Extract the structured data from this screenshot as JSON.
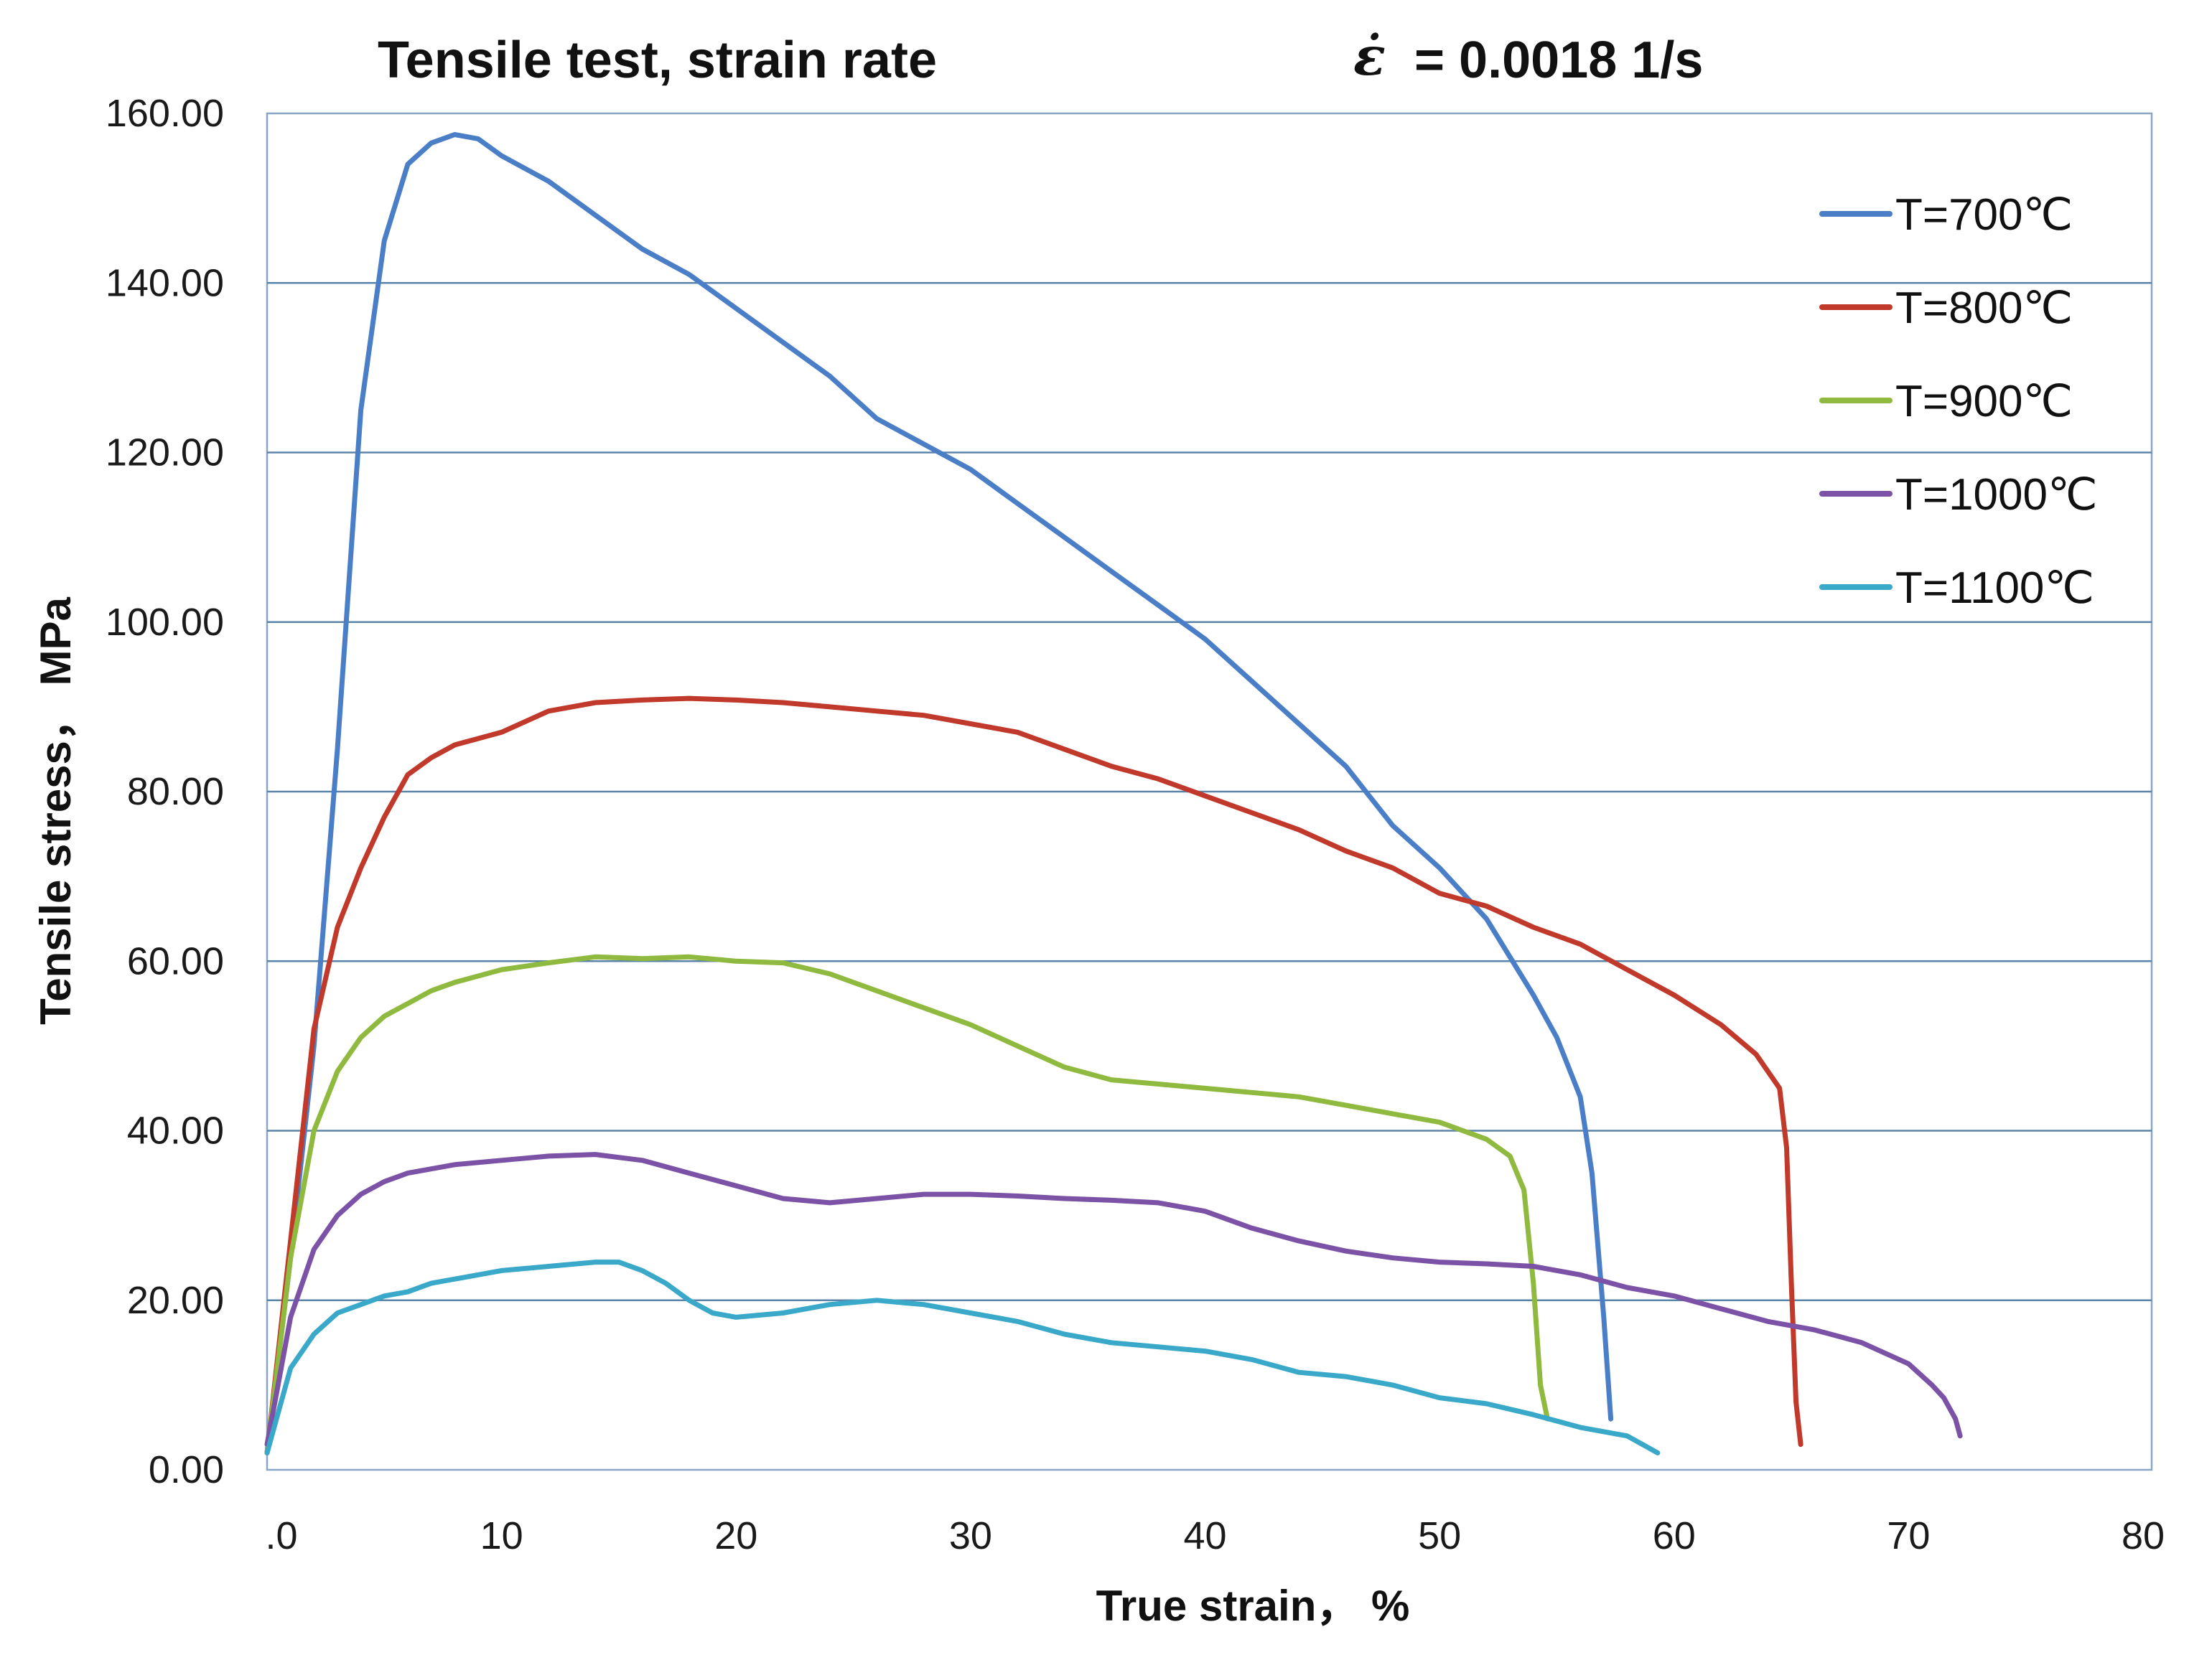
{
  "chart_data": {
    "type": "line",
    "title": "Tensile test, strain rate",
    "title_symbol": "ε̇",
    "title_value": "= 0.0018 1/s",
    "xlabel": "True strain，  %",
    "ylabel": "Tensile stress， MPa",
    "xlim": [
      0,
      80
    ],
    "ylim": [
      0,
      160
    ],
    "x_ticks": [
      0,
      10,
      20,
      30,
      40,
      50,
      60,
      70,
      80
    ],
    "x_tick_labels": [
      ".0",
      "10",
      "20",
      "30",
      "40",
      "50",
      "60",
      "70",
      "80"
    ],
    "y_ticks": [
      0,
      20,
      40,
      60,
      80,
      100,
      120,
      140,
      160
    ],
    "y_tick_labels": [
      "0.00",
      "20.00",
      "40.00",
      "60.00",
      "80.00",
      "100.00",
      "120.00",
      "140.00",
      "160.00"
    ],
    "grid": "horizontal",
    "legend_position": "top-right",
    "series": [
      {
        "name": "T=700℃",
        "color": "#4a7ec6",
        "x": [
          0,
          1,
          2,
          3,
          4,
          5,
          6,
          7,
          8,
          9,
          10,
          12,
          14,
          16,
          18,
          20,
          22,
          24,
          26,
          28,
          30,
          32,
          34,
          36,
          38,
          40,
          42,
          44,
          46,
          48,
          50,
          52,
          54,
          55,
          56,
          56.5,
          57,
          57.3
        ],
        "y": [
          2,
          25,
          50,
          85,
          125,
          145,
          154,
          156.5,
          157.5,
          157,
          155,
          152,
          148,
          144,
          141,
          137,
          133,
          129,
          124,
          121,
          118,
          114,
          110,
          106,
          102,
          98,
          93,
          88,
          83,
          76,
          71,
          65,
          56,
          51,
          44,
          35,
          18,
          6
        ]
      },
      {
        "name": "T=800℃",
        "color": "#c0392b",
        "x": [
          0,
          1,
          2,
          3,
          4,
          5,
          6,
          7,
          8,
          10,
          12,
          14,
          16,
          18,
          20,
          22,
          24,
          26,
          28,
          30,
          32,
          34,
          36,
          38,
          40,
          42,
          44,
          46,
          48,
          50,
          52,
          54,
          56,
          58,
          60,
          62,
          63.5,
          64.5,
          64.8,
          65,
          65.2,
          65.4
        ],
        "y": [
          2,
          27,
          52,
          64,
          71,
          77,
          82,
          84,
          85.5,
          87,
          89.5,
          90.5,
          90.8,
          91,
          90.8,
          90.5,
          90,
          89.5,
          89,
          88,
          87,
          85,
          83,
          81.5,
          79.5,
          77.5,
          75.5,
          73,
          71,
          68,
          66.5,
          64,
          62,
          59,
          56,
          52.5,
          49,
          45,
          38,
          22,
          8,
          3
        ]
      },
      {
        "name": "T=900℃",
        "color": "#8fba3f",
        "x": [
          0,
          1,
          2,
          3,
          4,
          5,
          6,
          7,
          8,
          10,
          12,
          14,
          16,
          18,
          20,
          22,
          24,
          26,
          28,
          30,
          32,
          34,
          36,
          38,
          40,
          42,
          44,
          46,
          48,
          50,
          52,
          53,
          53.6,
          54,
          54.3,
          54.6
        ],
        "y": [
          2,
          25,
          40,
          47,
          51,
          53.5,
          55,
          56.5,
          57.5,
          59,
          59.8,
          60.5,
          60.3,
          60.5,
          60,
          59.8,
          58.5,
          56.5,
          54.5,
          52.5,
          50,
          47.5,
          46,
          45.5,
          45,
          44.5,
          44,
          43,
          42,
          41,
          39,
          37,
          33,
          22,
          10,
          6
        ]
      },
      {
        "name": "T=1000℃",
        "color": "#7b52a6",
        "x": [
          0,
          1,
          2,
          3,
          4,
          5,
          6,
          8,
          10,
          12,
          14,
          16,
          18,
          20,
          22,
          24,
          26,
          28,
          30,
          32,
          34,
          36,
          38,
          40,
          42,
          44,
          46,
          48,
          50,
          52,
          54,
          56,
          58,
          60,
          62,
          64,
          66,
          68,
          70,
          71,
          71.5,
          72,
          72.2
        ],
        "y": [
          3,
          18,
          26,
          30,
          32.5,
          34,
          35,
          36,
          36.5,
          37,
          37.2,
          36.5,
          35,
          33.5,
          32,
          31.5,
          32,
          32.5,
          32.5,
          32.3,
          32,
          31.8,
          31.5,
          30.5,
          28.5,
          27,
          25.8,
          25,
          24.5,
          24.3,
          24,
          23,
          21.5,
          20.5,
          19,
          17.5,
          16.5,
          15,
          12.5,
          10,
          8.5,
          6,
          4
        ]
      },
      {
        "name": "T=1100℃",
        "color": "#3aa9c9",
        "x": [
          0,
          1,
          2,
          3,
          4,
          5,
          6,
          7,
          8,
          10,
          12,
          14,
          15,
          16,
          17,
          18,
          19,
          20,
          22,
          24,
          26,
          28,
          30,
          32,
          34,
          36,
          38,
          40,
          42,
          44,
          46,
          48,
          50,
          52,
          54,
          56,
          58,
          59.3
        ],
        "y": [
          2,
          12,
          16,
          18.5,
          19.5,
          20.5,
          21,
          22,
          22.5,
          23.5,
          24,
          24.5,
          24.5,
          23.5,
          22,
          20,
          18.5,
          18,
          18.5,
          19.5,
          20,
          19.5,
          18.5,
          17.5,
          16,
          15,
          14.5,
          14,
          13,
          11.5,
          11,
          10,
          8.5,
          7.8,
          6.5,
          5,
          4,
          2
        ]
      }
    ]
  }
}
